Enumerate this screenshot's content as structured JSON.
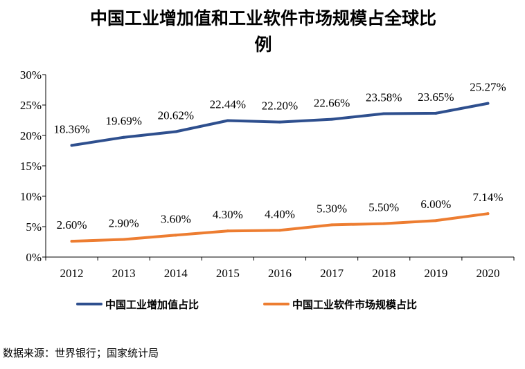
{
  "title_line1": "中国工业增加值和工业软件市场规模占全球比",
  "title_line2": "例",
  "source": "数据来源：世界银行；国家统计局",
  "chart_data": {
    "type": "line",
    "x": [
      "2012",
      "2013",
      "2014",
      "2015",
      "2016",
      "2017",
      "2018",
      "2019",
      "2020"
    ],
    "ylim": [
      0,
      30
    ],
    "yticks": [
      "0%",
      "5%",
      "10%",
      "15%",
      "20%",
      "25%",
      "30%"
    ],
    "grid": false,
    "legend_position": "bottom",
    "series": [
      {
        "name": "中国工业增加值占比",
        "color": "#2e4f8e",
        "values": [
          18.36,
          19.69,
          20.62,
          22.44,
          22.2,
          22.66,
          23.58,
          23.65,
          25.27
        ],
        "labels": [
          "18.36%",
          "19.69%",
          "20.62%",
          "22.44%",
          "22.20%",
          "22.66%",
          "23.58%",
          "23.65%",
          "25.27%"
        ]
      },
      {
        "name": "中国工业软件市场规模占比",
        "color": "#ed7d31",
        "values": [
          2.6,
          2.9,
          3.6,
          4.3,
          4.4,
          5.3,
          5.5,
          6.0,
          7.14
        ],
        "labels": [
          "2.60%",
          "2.90%",
          "3.60%",
          "4.30%",
          "4.40%",
          "5.30%",
          "5.50%",
          "6.00%",
          "7.14%"
        ]
      }
    ]
  }
}
